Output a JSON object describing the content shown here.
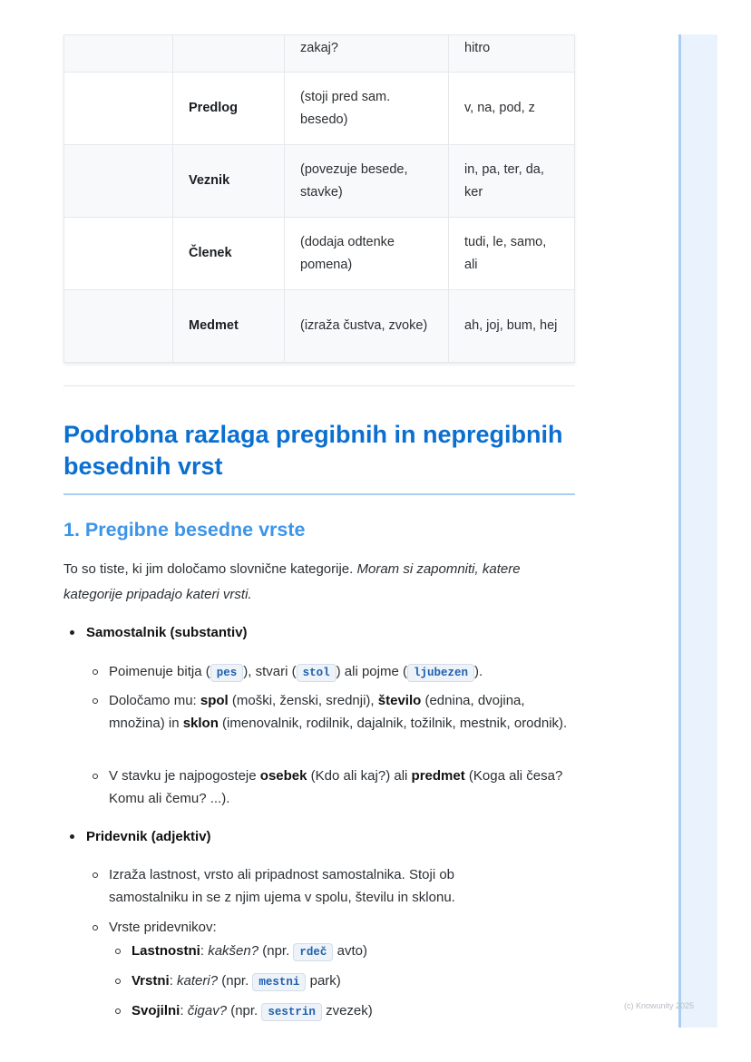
{
  "table": {
    "rows": [
      [
        "",
        "",
        "zakaj?",
        "hitro"
      ],
      [
        "",
        "Predlog",
        "(stoji pred sam. besedo)",
        "v, na, pod, z"
      ],
      [
        "",
        "Veznik",
        "(povezuje besede, stavke)",
        "in, pa, ter, da, ker"
      ],
      [
        "",
        "Členek",
        "(dodaja odtenke pomena)",
        "tudi, le, samo, ali"
      ],
      [
        "",
        "Medmet",
        "(izraža čustva, zvoke)",
        "ah, joj, bum, hej"
      ]
    ]
  },
  "heading": "Podrobna razlaga pregibnih in nepregibnih besednih vrst",
  "subheading": "1. Pregibne besedne vrste",
  "intro": {
    "text": "To so tiste, ki jim določamo slovnične kategorije. ",
    "italic": "Moram si zapomniti, katere kategorije pripadajo kateri vrsti."
  },
  "samostalnik": {
    "title": "Samostalnik (substantiv)",
    "i1": {
      "a": "Poimenuje bitja (",
      "c1": "pes",
      "b": "), stvari (",
      "c2": "stol",
      "c": ") ali pojme (",
      "c3": "ljubezen",
      "d": ")."
    },
    "i2": {
      "a": "Določamo mu: ",
      "b1": "spol",
      "t1": " (moški, ženski, srednji), ",
      "b2": "število",
      "t2": " (ednina, dvojina, množina) in ",
      "b3": "sklon",
      "t3": " (imenovalnik, rodilnik, dajalnik, tožilnik, mestnik, orodnik)."
    },
    "i3": {
      "a": "V stavku je najpogosteje ",
      "b1": "osebek",
      "t1": " (Kdo ali kaj?) ali ",
      "b2": "predmet",
      "t2": " (Koga ali česa? Komu ali čemu? ...)."
    }
  },
  "pridevnik": {
    "title": "Pridevnik (adjektiv)",
    "i1": "Izraža lastnost, vrsto ali pripadnost samostalnika. Stoji ob samostalniku in se z njim ujema v spolu, številu in sklonu.",
    "i2": "Vrste pridevnikov:",
    "types": [
      {
        "name": "Lastnostni",
        "q": "kakšen?",
        "pre": " (npr. ",
        "code": "rdeč",
        "post": " avto)"
      },
      {
        "name": "Vrstni",
        "q": "kateri?",
        "pre": " (npr. ",
        "code": "mestni",
        "post": " park)"
      },
      {
        "name": "Svojilni",
        "q": "čigav?",
        "pre": " (npr. ",
        "code": "sestrin",
        "post": " zvezek)"
      }
    ]
  },
  "watermark": "(c) Knowunity 2025"
}
